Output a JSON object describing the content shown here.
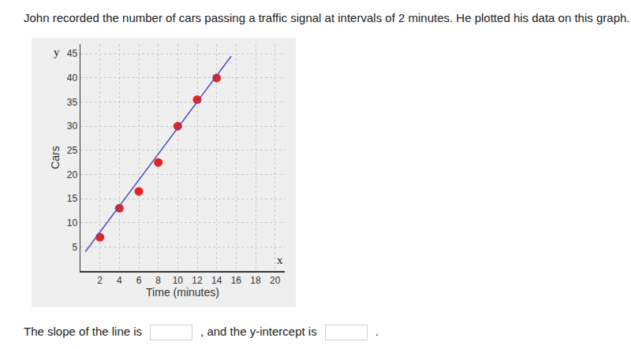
{
  "question": "John recorded the number of cars passing a traffic signal at intervals of 2 minutes. He plotted his data on this graph.",
  "chart_data": {
    "type": "scatter",
    "x_label": "Time (minutes)",
    "y_label": "Cars",
    "annotations": [
      {
        "text": "x"
      },
      {
        "text": "y"
      }
    ],
    "series": [
      {
        "type": "scatter",
        "color": "#e8231f",
        "marker": "circle",
        "x": [
          2,
          4,
          6,
          8,
          10,
          12,
          14
        ],
        "values": [
          7,
          13,
          16.5,
          22.5,
          30,
          35.5,
          40
        ]
      },
      {
        "type": "line",
        "color": "#4b4bc8",
        "line_style": "solid",
        "x": [
          0.5,
          15.5
        ],
        "values": [
          4,
          44.5
        ]
      }
    ],
    "xlim": [
      0,
      21
    ],
    "ylim": [
      0,
      47
    ],
    "xticks": [
      2,
      4,
      6,
      8,
      10,
      12,
      14,
      16,
      18,
      20
    ],
    "yticks": [
      5,
      10,
      15,
      20,
      25,
      30,
      35,
      40,
      45
    ],
    "grid": true
  },
  "prompt": {
    "before": "The slope of the line is",
    "middle": ", and the y-intercept is",
    "after": "."
  }
}
